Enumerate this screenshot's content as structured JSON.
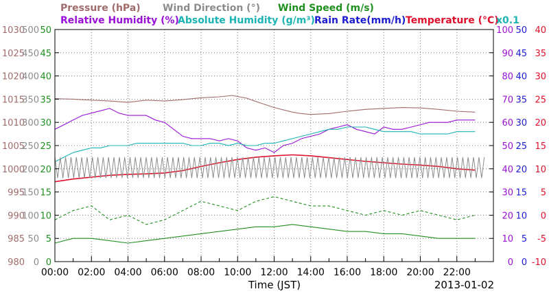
{
  "chart_data": {
    "type": "line",
    "title": "",
    "legend": {
      "line1": [
        {
          "name": "Pressure (hPa)",
          "color": "#a06b6b"
        },
        {
          "name": "Wind Direction (°)",
          "color": "#8c8c8c"
        },
        {
          "name": "Wind Speed (m/s)",
          "color": "#1f8f1f"
        }
      ],
      "line2": [
        {
          "name": "Relative Humidity (%)",
          "color": "#9a10d8"
        },
        {
          "name": "Absolute Humidity (g/m³)",
          "color": "#1bb3b3"
        },
        {
          "name": "Rain Rate(mm/h)",
          "color": "#1c1cd0"
        },
        {
          "name": "Temperature (°C)",
          "color": "#e0102c"
        }
      ],
      "scale_note": "x0.1"
    },
    "xlabel": "Time (JST)",
    "date": "2013-01-02",
    "x_ticks": [
      "00:00",
      "02:00",
      "04:00",
      "06:00",
      "08:00",
      "10:00",
      "12:00",
      "14:00",
      "16:00",
      "18:00",
      "20:00",
      "22:00"
    ],
    "x_range_hours": [
      0,
      24
    ],
    "grid": true,
    "axes": {
      "pressure": {
        "color": "#a06b6b",
        "ticks": [
          "980",
          "985",
          "990",
          "995",
          "1000",
          "1005",
          "1010",
          "1015",
          "1020",
          "1025",
          "1030"
        ],
        "range": [
          980,
          1030
        ]
      },
      "wind_direction": {
        "color": "#8c8c8c",
        "ticks": [
          "0",
          "50",
          "100",
          "150",
          "200",
          "250",
          "300",
          "350",
          "400",
          "450",
          "500"
        ],
        "range": [
          0,
          500
        ]
      },
      "wind_speed": {
        "color": "#1f8f1f",
        "ticks": [
          "0",
          "5",
          "10",
          "15",
          "20",
          "25",
          "30",
          "35",
          "40",
          "45",
          "50"
        ],
        "range": [
          0,
          50
        ]
      },
      "humidity": {
        "color": "#9a10d8",
        "ticks": [
          "0",
          "10",
          "20",
          "30",
          "40",
          "50",
          "60",
          "70",
          "80",
          "90",
          "100"
        ],
        "range": [
          0,
          100
        ]
      },
      "rain_rate": {
        "color": "#1c1cd0",
        "ticks": [
          "0",
          "5",
          "10",
          "15",
          "20",
          "25",
          "30",
          "35",
          "40",
          "45",
          "50"
        ],
        "range": [
          0,
          50
        ]
      },
      "temperature": {
        "color": "#e0102c",
        "ticks": [
          "-10",
          "-5",
          "0",
          "5",
          "10",
          "15",
          "20",
          "25",
          "30",
          "35",
          "40"
        ],
        "range": [
          -10,
          40
        ]
      }
    },
    "series": [
      {
        "name": "Pressure (hPa)",
        "axis": "pressure",
        "color": "#a06b6b",
        "style": "solid",
        "x": [
          0,
          1,
          2,
          3,
          4,
          5,
          6,
          7,
          8,
          9,
          9.7,
          10.5,
          11,
          12,
          13,
          13.5,
          14,
          15,
          16,
          17,
          18,
          19,
          20,
          21,
          22,
          23
        ],
        "y": [
          1015.1,
          1015.0,
          1014.8,
          1014.6,
          1014.3,
          1014.8,
          1014.6,
          1014.9,
          1015.3,
          1015.5,
          1015.8,
          1015.2,
          1014.5,
          1013.2,
          1012.2,
          1011.9,
          1011.7,
          1011.9,
          1012.4,
          1012.8,
          1013.0,
          1013.2,
          1013.1,
          1012.8,
          1012.4,
          1012.2
        ]
      },
      {
        "name": "Relative Humidity (%)",
        "axis": "humidity",
        "color": "#9a10d8",
        "style": "solid",
        "x": [
          0,
          0.5,
          1,
          1.5,
          2,
          2.5,
          3,
          3.5,
          4,
          4.5,
          5,
          5.5,
          6,
          6.5,
          7,
          7.5,
          8,
          8.5,
          9,
          9.5,
          10,
          10.5,
          11,
          11.5,
          12,
          12.5,
          13,
          13.5,
          14,
          14.5,
          15,
          15.5,
          16,
          16.5,
          17,
          17.5,
          18,
          18.5,
          19,
          19.5,
          20,
          20.5,
          21,
          21.5,
          22,
          22.5,
          23
        ],
        "y": [
          57,
          59,
          61,
          63,
          64,
          65,
          66,
          64,
          63,
          63,
          63,
          61,
          60,
          57,
          54,
          53,
          53,
          53,
          52,
          53,
          52,
          49,
          48,
          49,
          47,
          50,
          51,
          53,
          54,
          55,
          57,
          58,
          59,
          57,
          56,
          55,
          58,
          57,
          57,
          58,
          59,
          60,
          60,
          60,
          61,
          61,
          61
        ]
      },
      {
        "name": "Absolute Humidity (g/m³)",
        "axis": "humidity",
        "color": "#1bb3b3",
        "style": "solid",
        "x": [
          0,
          0.5,
          1,
          1.5,
          2,
          2.5,
          3,
          3.5,
          4,
          4.5,
          5,
          5.5,
          6,
          6.5,
          7,
          7.5,
          8,
          8.5,
          9,
          9.5,
          10,
          10.5,
          11,
          11.5,
          12,
          12.5,
          13,
          13.5,
          14,
          14.5,
          15,
          15.5,
          16,
          16.5,
          17,
          17.5,
          18,
          18.5,
          19,
          19.5,
          20,
          20.5,
          21,
          21.5,
          22,
          22.5,
          23
        ],
        "y": [
          43,
          45,
          47,
          48,
          49,
          49,
          50,
          50,
          50,
          51,
          51,
          51,
          51,
          51,
          51,
          50,
          50,
          51,
          51,
          50,
          51,
          50,
          50,
          51,
          51,
          52,
          53,
          54,
          55,
          56,
          57,
          57,
          58,
          58,
          58,
          57,
          56,
          56,
          56,
          56,
          55,
          55,
          55,
          55,
          56,
          56,
          56
        ]
      },
      {
        "name": "Temperature (°C)",
        "axis": "temperature",
        "color": "#e0102c",
        "style": "solid",
        "x": [
          0,
          1,
          2,
          3,
          4,
          5,
          6,
          7,
          8,
          9,
          10,
          11,
          12,
          13,
          14,
          15,
          16,
          17,
          18,
          19,
          20,
          21,
          22,
          23
        ],
        "y": [
          7.2,
          7.8,
          8.2,
          8.6,
          8.8,
          8.9,
          9.1,
          9.6,
          10.5,
          11.3,
          12.0,
          12.5,
          12.8,
          13.0,
          12.8,
          12.4,
          12.0,
          11.6,
          11.3,
          11.0,
          10.8,
          10.5,
          10.0,
          9.7
        ]
      },
      {
        "name": "Rain Rate(mm/h)",
        "axis": "rain_rate",
        "color": "#1c1cd0",
        "style": "solid",
        "x": [
          0,
          23.5
        ],
        "y": [
          0,
          0
        ]
      },
      {
        "name": "Wind Direction (°)",
        "axis": "wind_direction",
        "color": "#8c8c8c",
        "style": "zigzag",
        "x": [
          0,
          23.5
        ],
        "y_low": [
          180,
          180
        ],
        "y_high": [
          225,
          225
        ]
      },
      {
        "name": "Wind Speed (m/s) gust",
        "axis": "wind_speed",
        "color": "#1f8f1f",
        "style": "dashed",
        "x": [
          0,
          1,
          2,
          3,
          4,
          5,
          6,
          7,
          8,
          9,
          10,
          11,
          12,
          13,
          14,
          15,
          16,
          17,
          18,
          19,
          20,
          21,
          22,
          23
        ],
        "y": [
          9,
          11,
          12,
          9,
          10,
          8,
          9,
          11,
          13,
          12,
          11,
          13,
          14,
          13,
          12,
          12,
          11,
          10,
          11,
          10,
          11,
          10,
          9,
          10
        ]
      },
      {
        "name": "Wind Speed (m/s) mean",
        "axis": "wind_speed",
        "color": "#1f8f1f",
        "style": "solid",
        "x": [
          0,
          1,
          2,
          3,
          4,
          5,
          6,
          7,
          8,
          9,
          10,
          11,
          12,
          13,
          14,
          15,
          16,
          17,
          18,
          19,
          20,
          21,
          22,
          23
        ],
        "y": [
          4,
          5,
          5,
          4.5,
          4,
          4.5,
          5,
          5.5,
          6,
          6.5,
          7,
          7.5,
          7.5,
          8,
          7.5,
          7,
          6.5,
          6.5,
          6,
          6,
          5.5,
          5,
          5,
          5
        ]
      }
    ]
  }
}
